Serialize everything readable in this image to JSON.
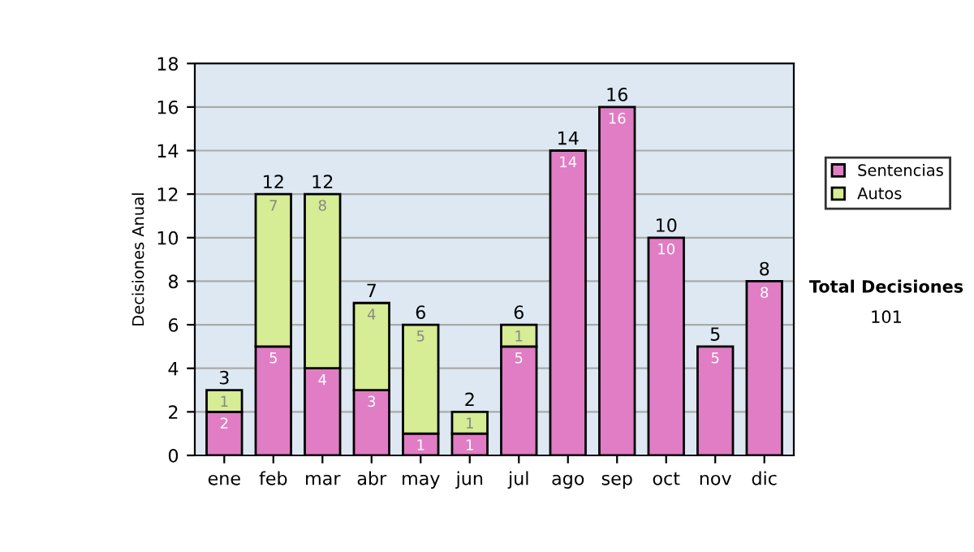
{
  "chart_data": {
    "type": "bar",
    "stacked": true,
    "ylabel": "Decisiones Anual",
    "categories": [
      "ene",
      "feb",
      "mar",
      "abr",
      "may",
      "jun",
      "jul",
      "ago",
      "sep",
      "oct",
      "nov",
      "dic"
    ],
    "series": [
      {
        "name": "Sentencias",
        "color": "#e07dc4",
        "values": [
          2,
          5,
          4,
          3,
          1,
          1,
          5,
          14,
          16,
          10,
          5,
          8
        ]
      },
      {
        "name": "Autos",
        "color": "#d6ec95",
        "values": [
          1,
          7,
          8,
          4,
          5,
          1,
          1,
          null,
          null,
          null,
          null,
          null
        ]
      }
    ],
    "totals": [
      "3",
      "12",
      "12",
      "7",
      "6",
      "2",
      "6",
      "14",
      "16",
      "10",
      "5",
      "8"
    ],
    "data_labels": true,
    "ylim": [
      0,
      18
    ],
    "yticks": [
      0,
      2,
      4,
      6,
      8,
      10,
      12,
      14,
      16,
      18
    ],
    "grid": "y",
    "legend": "right",
    "annotations": [
      "Total Decisiones",
      "101"
    ]
  }
}
